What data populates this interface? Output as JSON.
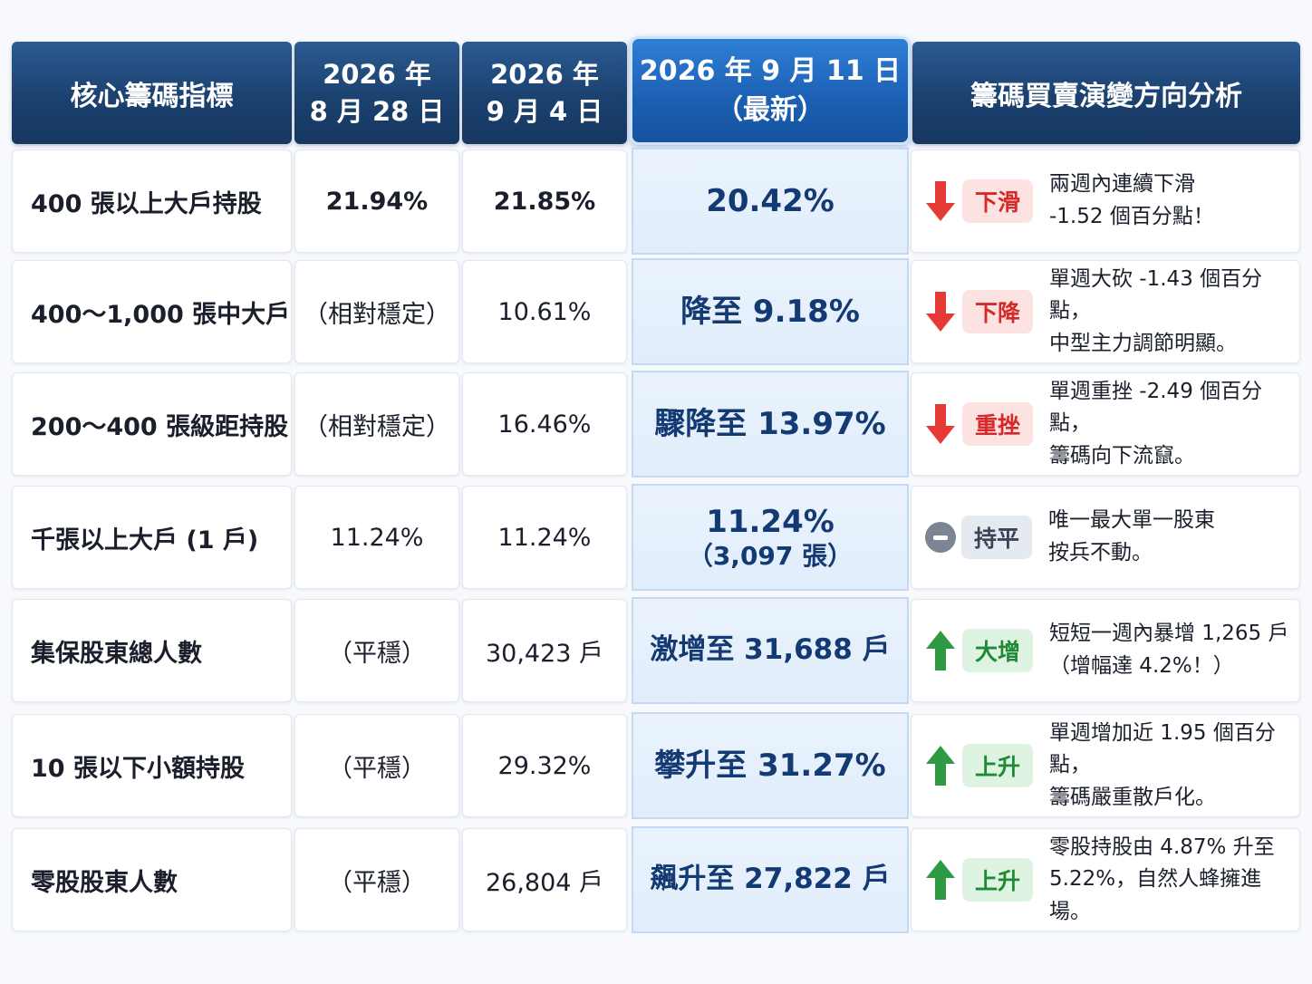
{
  "header": {
    "col1": "核心籌碼指標",
    "col2": "2026 年\n8 月 28 日",
    "col3": "2026 年\n9 月 4 日",
    "col4": "2026 年 9 月 11 日\n（最新）",
    "col5": "籌碼買賣演變方向分析"
  },
  "rows": [
    {
      "label": "400 張以上大戶持股",
      "v1": "21.94%",
      "v2": "21.85%",
      "latest": "20.42%",
      "latest_sub": "",
      "badge": "下滑",
      "trend": "down",
      "note": "兩週內連續下滑\n-1.52 個百分點！"
    },
    {
      "label": "400～1,000 張中大戶",
      "v1": "（相對穩定）",
      "v2": "10.61%",
      "latest": "降至 9.18%",
      "latest_sub": "",
      "badge": "下降",
      "trend": "down",
      "note": "單週大砍 -1.43 個百分點，\n中型主力調節明顯。"
    },
    {
      "label": "200～400 張級距持股",
      "v1": "（相對穩定）",
      "v2": "16.46%",
      "latest": "驟降至 13.97%",
      "latest_sub": "",
      "badge": "重挫",
      "trend": "down",
      "note": "單週重挫 -2.49 個百分點，\n籌碼向下流竄。"
    },
    {
      "label": "千張以上大戶 (1 戶)",
      "v1": "11.24%",
      "v2": "11.24%",
      "latest": "11.24%",
      "latest_sub": "（3,097 張）",
      "badge": "持平",
      "trend": "flat",
      "note": "唯一最大單一股東\n按兵不動。"
    },
    {
      "label": "集保股東總人數",
      "v1": "（平穩）",
      "v2": "30,423 戶",
      "latest": "激增至 31,688 戶",
      "latest_sub": "",
      "badge": "大增",
      "trend": "up",
      "note": "短短一週內暴增 1,265 戶\n（增幅達 4.2%！）"
    },
    {
      "label": "10 張以下小額持股",
      "v1": "（平穩）",
      "v2": "29.32%",
      "latest": "攀升至 31.27%",
      "latest_sub": "",
      "badge": "上升",
      "trend": "up",
      "note": "單週增加近 1.95 個百分點，\n籌碼嚴重散戶化。"
    },
    {
      "label": "零股股東人數",
      "v1": "（平穩）",
      "v2": "26,804 戶",
      "latest": "飆升至 27,822 戶",
      "latest_sub": "",
      "badge": "上升",
      "trend": "up",
      "note": "零股持股由 4.87% 升至\n5.22%，自然人蜂擁進場。"
    }
  ],
  "colors": {
    "down": "#e53935",
    "up": "#2e9a44",
    "flat": "#7c8593",
    "accent": "#1b5fb3"
  }
}
